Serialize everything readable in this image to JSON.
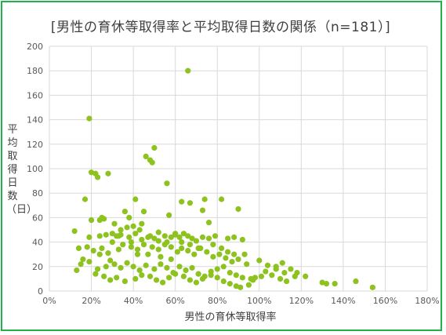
{
  "chart_data": {
    "type": "scatter",
    "title": "[男性の育休等取得率と平均取得日数の関係（n=181）]",
    "xlabel": "男性の育休等取得率",
    "ylabel": "平均取得日数（日）",
    "xlim": [
      0,
      180
    ],
    "ylim": [
      0,
      200
    ],
    "x_ticks": [
      "0%",
      "20%",
      "40%",
      "60%",
      "80%",
      "100%",
      "120%",
      "140%",
      "160%",
      "180%"
    ],
    "y_ticks": [
      "0",
      "20",
      "40",
      "60",
      "80",
      "100",
      "120",
      "140",
      "160",
      "180",
      "200"
    ],
    "grid": true,
    "legend": "none",
    "marker_color": "#8dc21f",
    "points": [
      [
        19,
        141
      ],
      [
        66,
        180
      ],
      [
        20,
        97
      ],
      [
        22,
        96
      ],
      [
        28,
        96
      ],
      [
        23,
        93
      ],
      [
        50,
        117
      ],
      [
        46,
        110
      ],
      [
        48,
        107
      ],
      [
        49,
        105
      ],
      [
        17,
        75
      ],
      [
        41,
        75
      ],
      [
        63,
        73
      ],
      [
        67,
        72
      ],
      [
        74,
        75
      ],
      [
        82,
        75
      ],
      [
        90,
        67
      ],
      [
        56,
        88
      ],
      [
        36,
        65
      ],
      [
        45,
        65
      ],
      [
        57,
        62
      ],
      [
        73,
        66
      ],
      [
        76,
        56
      ],
      [
        20,
        58
      ],
      [
        24,
        58
      ],
      [
        26,
        59
      ],
      [
        31,
        55
      ],
      [
        37,
        52
      ],
      [
        40,
        53
      ],
      [
        43,
        50
      ],
      [
        12,
        49
      ],
      [
        19,
        44
      ],
      [
        24,
        45
      ],
      [
        27,
        46
      ],
      [
        30,
        47
      ],
      [
        32,
        45
      ],
      [
        34,
        46
      ],
      [
        38,
        44
      ],
      [
        41,
        47
      ],
      [
        44,
        42
      ],
      [
        47,
        44
      ],
      [
        50,
        43
      ],
      [
        52,
        41
      ],
      [
        55,
        45
      ],
      [
        58,
        44
      ],
      [
        60,
        46
      ],
      [
        62,
        44
      ],
      [
        64,
        47
      ],
      [
        66,
        45
      ],
      [
        68,
        43
      ],
      [
        70,
        41
      ],
      [
        73,
        44
      ],
      [
        76,
        43
      ],
      [
        79,
        45
      ],
      [
        85,
        43
      ],
      [
        88,
        44
      ],
      [
        92,
        42
      ],
      [
        14,
        35
      ],
      [
        18,
        36
      ],
      [
        21,
        33
      ],
      [
        25,
        35
      ],
      [
        28,
        31
      ],
      [
        33,
        34
      ],
      [
        35,
        38
      ],
      [
        39,
        36
      ],
      [
        42,
        34
      ],
      [
        45,
        38
      ],
      [
        49,
        36
      ],
      [
        52,
        34
      ],
      [
        55,
        38
      ],
      [
        58,
        36
      ],
      [
        61,
        32
      ],
      [
        63,
        35
      ],
      [
        66,
        33
      ],
      [
        69,
        30
      ],
      [
        72,
        35
      ],
      [
        75,
        32
      ],
      [
        78,
        28
      ],
      [
        81,
        30
      ],
      [
        84,
        27
      ],
      [
        87,
        24
      ],
      [
        90,
        26
      ],
      [
        94,
        22
      ],
      [
        100,
        25
      ],
      [
        104,
        21
      ],
      [
        108,
        20
      ],
      [
        111,
        23
      ],
      [
        115,
        18
      ],
      [
        118,
        15
      ],
      [
        122,
        12
      ],
      [
        15,
        22
      ],
      [
        19,
        24
      ],
      [
        23,
        18
      ],
      [
        27,
        20
      ],
      [
        31,
        22
      ],
      [
        34,
        19
      ],
      [
        37,
        23
      ],
      [
        40,
        20
      ],
      [
        43,
        17
      ],
      [
        46,
        21
      ],
      [
        50,
        18
      ],
      [
        53,
        22
      ],
      [
        56,
        19
      ],
      [
        59,
        15
      ],
      [
        62,
        20
      ],
      [
        65,
        17
      ],
      [
        68,
        19
      ],
      [
        71,
        14
      ],
      [
        74,
        12
      ],
      [
        77,
        16
      ],
      [
        80,
        18
      ],
      [
        83,
        20
      ],
      [
        86,
        15
      ],
      [
        89,
        13
      ],
      [
        92,
        11
      ],
      [
        97,
        9
      ],
      [
        101,
        12
      ],
      [
        106,
        13
      ],
      [
        110,
        10
      ],
      [
        113,
        8
      ],
      [
        117,
        12
      ],
      [
        13,
        17
      ],
      [
        22,
        14
      ],
      [
        26,
        12
      ],
      [
        29,
        9
      ],
      [
        32,
        11
      ],
      [
        36,
        8
      ],
      [
        41,
        10
      ],
      [
        44,
        13
      ],
      [
        48,
        12
      ],
      [
        51,
        9
      ],
      [
        54,
        7
      ],
      [
        57,
        11
      ],
      [
        60,
        14
      ],
      [
        64,
        12
      ],
      [
        67,
        9
      ],
      [
        70,
        7
      ],
      [
        73,
        10
      ],
      [
        77,
        13
      ],
      [
        80,
        11
      ],
      [
        83,
        8
      ],
      [
        86,
        6
      ],
      [
        89,
        4
      ],
      [
        91,
        3
      ],
      [
        95,
        5
      ],
      [
        130,
        7
      ],
      [
        132,
        6
      ],
      [
        136,
        6
      ],
      [
        146,
        8
      ],
      [
        154,
        3
      ],
      [
        16,
        26
      ],
      [
        24,
        30
      ],
      [
        30,
        40
      ],
      [
        34,
        50
      ],
      [
        38,
        60
      ],
      [
        42,
        30
      ],
      [
        47,
        30
      ],
      [
        53,
        28
      ],
      [
        58,
        26
      ],
      [
        63,
        40
      ],
      [
        67,
        38
      ],
      [
        71,
        35
      ],
      [
        78,
        38
      ],
      [
        82,
        35
      ],
      [
        85,
        32
      ],
      [
        88,
        30
      ],
      [
        93,
        30
      ],
      [
        96,
        10
      ],
      [
        98,
        11
      ],
      [
        103,
        16
      ],
      [
        108,
        18
      ],
      [
        112,
        15
      ],
      [
        25,
        60
      ],
      [
        29,
        25
      ],
      [
        33,
        45
      ],
      [
        39,
        40
      ],
      [
        44,
        55
      ],
      [
        48,
        45
      ],
      [
        52,
        48
      ],
      [
        56,
        40
      ],
      [
        60,
        47
      ]
    ]
  }
}
